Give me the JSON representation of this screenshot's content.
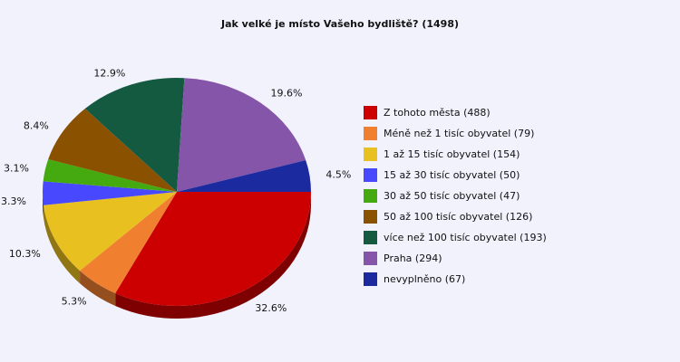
{
  "chart_data": {
    "type": "pie",
    "title": "Jak velké je místo Vašeho bydliště? (1498)",
    "slices": [
      {
        "label": "Z tohoto města (488)",
        "value": 488,
        "percent_label": "32.6%",
        "color": "#cc0000"
      },
      {
        "label": "Méně než 1 tisíc obyvatel (79)",
        "value": 79,
        "percent_label": "5.3%",
        "color": "#f08030"
      },
      {
        "label": "1 až 15 tisíc obyvatel (154)",
        "value": 154,
        "percent_label": "10.3%",
        "color": "#e8c020"
      },
      {
        "label": "15 až 30 tisíc obyvatel (50)",
        "value": 50,
        "percent_label": "3.3%",
        "color": "#4848ff"
      },
      {
        "label": "30 až 50 tisíc obyvatel (47)",
        "value": 47,
        "percent_label": "3.1%",
        "color": "#44aa10"
      },
      {
        "label": "50 až 100 tisíc obyvatel (126)",
        "value": 126,
        "percent_label": "8.4%",
        "color": "#8a5200"
      },
      {
        "label": "více než 100 tisíc obyvatel (193)",
        "value": 193,
        "percent_label": "12.9%",
        "color": "#145a40"
      },
      {
        "label": "Praha (294)",
        "value": 294,
        "percent_label": "19.6%",
        "color": "#8455a8"
      },
      {
        "label": "nevyplněno (67)",
        "value": 67,
        "percent_label": "4.5%",
        "color": "#1c2aa0"
      }
    ],
    "legend_position": "right",
    "style": "3d-pie"
  }
}
